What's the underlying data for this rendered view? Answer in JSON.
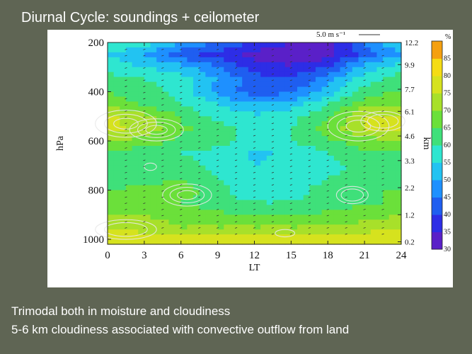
{
  "slide": {
    "title": "Diurnal Cycle: soundings + ceilometer",
    "caption_line1": "Trimodal both in moisture and cloudiness",
    "caption_line2": "5-6 km cloudiness associated with convective outflow from land"
  },
  "chart_data": {
    "type": "heatmap",
    "xlabel": "LT",
    "ylabel": "hPa",
    "y2label": "km",
    "colorbar_unit": "%",
    "wind_reference": "5.0 m s⁻¹",
    "x_ticks": [
      0,
      3,
      6,
      9,
      12,
      15,
      18,
      21,
      24
    ],
    "xlim": [
      0,
      24
    ],
    "y_ticks": [
      200,
      400,
      600,
      800,
      1000
    ],
    "ylim": [
      1020,
      200
    ],
    "y2_ticks": [
      {
        "label": "12.2",
        "p": 200
      },
      {
        "label": "9.9",
        "p": 290
      },
      {
        "label": "7.7",
        "p": 390
      },
      {
        "label": "6.1",
        "p": 480
      },
      {
        "label": "4.6",
        "p": 580
      },
      {
        "label": "3.3",
        "p": 680
      },
      {
        "label": "2.2",
        "p": 790
      },
      {
        "label": "1.2",
        "p": 900
      },
      {
        "label": "0.2",
        "p": 1010
      }
    ],
    "colorbar": {
      "levels": [
        30,
        35,
        40,
        45,
        50,
        55,
        60,
        65,
        70,
        75,
        80,
        85,
        90
      ],
      "labels": [
        "30",
        "35",
        "40",
        "45",
        "50",
        "55",
        "60",
        "65",
        "70",
        "75",
        "80",
        "85"
      ],
      "colors": [
        "#5a20c8",
        "#2d2de6",
        "#1f5ef0",
        "#1e90ff",
        "#22c3f2",
        "#2ee6d0",
        "#3fe07a",
        "#6be03a",
        "#a8e02a",
        "#d6e21e",
        "#f5dc14",
        "#f5a010",
        "#f0141e"
      ]
    },
    "rh_grid": {
      "hours": [
        0,
        3,
        6,
        9,
        12,
        15,
        18,
        21,
        24
      ],
      "pressures": [
        200,
        250,
        300,
        350,
        400,
        450,
        500,
        550,
        600,
        650,
        700,
        750,
        800,
        850,
        900,
        950,
        1000
      ],
      "values": [
        [
          60,
          58,
          50,
          45,
          40,
          35,
          34,
          45,
          55
        ],
        [
          55,
          50,
          42,
          38,
          33,
          30,
          33,
          42,
          50
        ],
        [
          58,
          55,
          52,
          45,
          38,
          36,
          40,
          52,
          58
        ],
        [
          62,
          60,
          58,
          50,
          42,
          40,
          48,
          58,
          62
        ],
        [
          65,
          62,
          58,
          48,
          42,
          44,
          52,
          62,
          66
        ],
        [
          68,
          64,
          60,
          55,
          50,
          52,
          60,
          68,
          70
        ],
        [
          76,
          72,
          64,
          58,
          56,
          58,
          64,
          75,
          76
        ],
        [
          77,
          73,
          66,
          62,
          58,
          60,
          68,
          75,
          76
        ],
        [
          70,
          68,
          64,
          62,
          58,
          60,
          64,
          68,
          70
        ],
        [
          64,
          62,
          60,
          58,
          54,
          56,
          60,
          64,
          64
        ],
        [
          63,
          63,
          62,
          58,
          55,
          56,
          58,
          62,
          63
        ],
        [
          63,
          63,
          64,
          60,
          56,
          57,
          60,
          62,
          63
        ],
        [
          65,
          66,
          68,
          62,
          56,
          58,
          62,
          65,
          65
        ],
        [
          66,
          66,
          65,
          62,
          60,
          60,
          62,
          64,
          66
        ],
        [
          70,
          70,
          68,
          66,
          64,
          64,
          66,
          68,
          70
        ],
        [
          74,
          72,
          70,
          70,
          70,
          70,
          70,
          72,
          74
        ],
        [
          80,
          79,
          78,
          77,
          78,
          78,
          78,
          79,
          80
        ]
      ]
    },
    "cloud_contours": [
      {
        "hour": 1.5,
        "p": 530,
        "dx": 2.5,
        "dp": 55,
        "rings": 3
      },
      {
        "hour": 4,
        "p": 555,
        "dx": 2.2,
        "dp": 45,
        "rings": 3
      },
      {
        "hour": 20.5,
        "p": 540,
        "dx": 2.5,
        "dp": 60,
        "rings": 3
      },
      {
        "hour": 22.5,
        "p": 520,
        "dx": 1.8,
        "dp": 40,
        "rings": 2
      },
      {
        "hour": 6.5,
        "p": 820,
        "dx": 2.0,
        "dp": 45,
        "rings": 3
      },
      {
        "hour": 1.5,
        "p": 960,
        "dx": 2.5,
        "dp": 40,
        "rings": 2
      },
      {
        "hour": 20,
        "p": 820,
        "dx": 1.3,
        "dp": 35,
        "rings": 2
      },
      {
        "hour": 14.5,
        "p": 975,
        "dx": 0.8,
        "dp": 15,
        "rings": 1
      },
      {
        "hour": 3.5,
        "p": 705,
        "dx": 0.5,
        "dp": 15,
        "rings": 1
      }
    ]
  },
  "colors": {
    "slide_background": "#5f6554",
    "panel_background": "#ffffff",
    "slide_text": "#ffffff",
    "contour": "#e8e8e8",
    "wind_barb": "#333333"
  }
}
